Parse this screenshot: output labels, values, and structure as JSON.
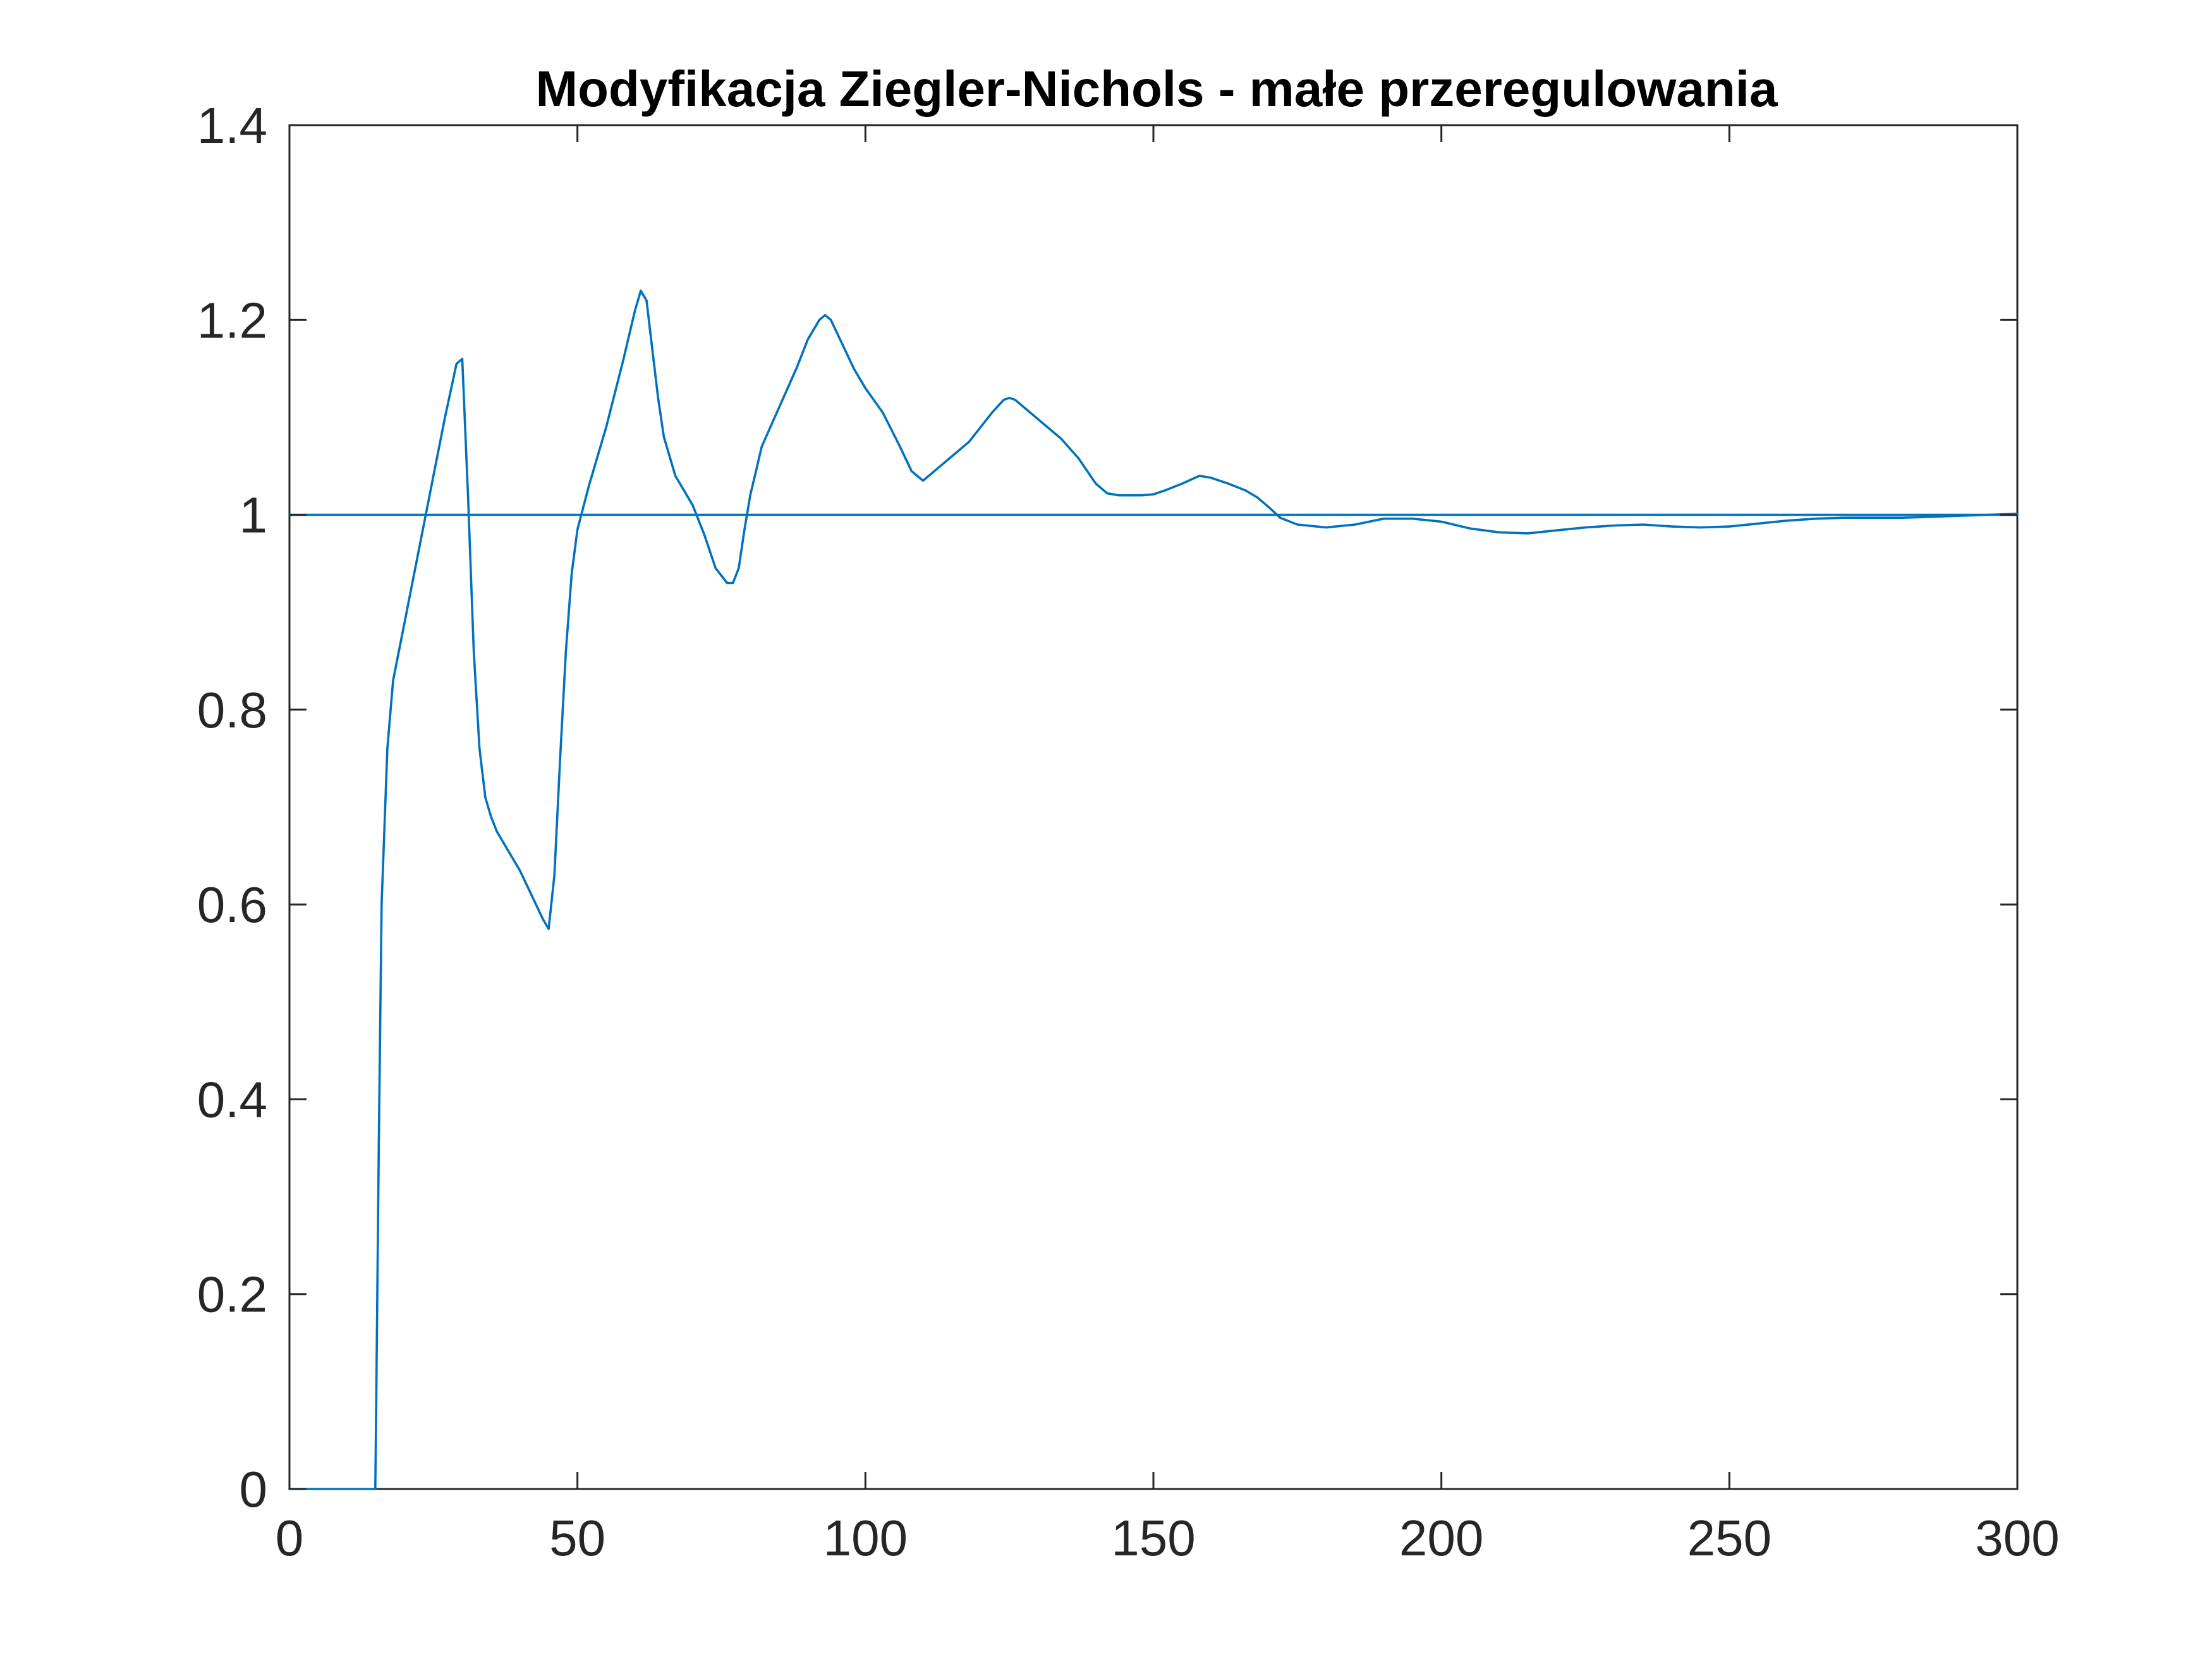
{
  "chart_data": {
    "type": "line",
    "title": "Modyfikacja Ziegler-Nichols - małe przeregulowania",
    "xlabel": "",
    "ylabel": "",
    "xlim": [
      0,
      300
    ],
    "ylim": [
      0,
      1.4
    ],
    "xticks": [
      0,
      50,
      100,
      150,
      200,
      250,
      300
    ],
    "xtick_labels": [
      "0",
      "50",
      "100",
      "150",
      "200",
      "250",
      "300"
    ],
    "yticks": [
      0,
      0.2,
      0.4,
      0.6,
      0.8,
      1,
      1.2,
      1.4
    ],
    "ytick_labels": [
      "0",
      "0.2",
      "0.4",
      "0.6",
      "0.8",
      "1",
      "1.2",
      "1.4"
    ],
    "grid": false,
    "box": true,
    "line_color": "#0072BD",
    "series": [
      {
        "x": [
          0,
          300
        ],
        "y": [
          1,
          1
        ]
      },
      {
        "x": [
          0,
          14.9,
          15,
          15.5,
          16,
          17,
          18,
          20,
          22,
          25,
          27,
          29,
          30,
          31,
          32,
          33,
          34,
          35,
          36,
          38,
          40,
          42,
          44,
          45,
          46,
          47,
          48,
          49,
          50,
          52,
          55,
          58,
          60,
          61,
          62,
          63,
          64,
          65,
          67,
          70,
          72,
          74,
          76,
          77,
          78,
          79,
          80,
          82,
          85,
          88,
          90,
          92,
          93,
          94,
          96,
          98,
          100,
          103,
          106,
          108,
          110,
          112,
          115,
          118,
          120,
          122,
          124,
          125,
          126,
          128,
          130,
          134,
          137,
          140,
          142,
          144,
          148,
          150,
          152,
          155,
          158,
          160,
          163,
          166,
          168,
          170,
          172,
          175,
          180,
          185,
          190,
          195,
          200,
          205,
          210,
          215,
          220,
          225,
          230,
          235,
          240,
          245,
          250,
          255,
          260,
          265,
          270,
          275,
          280,
          285,
          290,
          295,
          300
        ],
        "y": [
          0,
          0,
          0.05,
          0.35,
          0.6,
          0.76,
          0.83,
          0.89,
          0.95,
          1.04,
          1.1,
          1.155,
          1.16,
          1.02,
          0.86,
          0.76,
          0.71,
          0.69,
          0.675,
          0.655,
          0.635,
          0.61,
          0.585,
          0.575,
          0.63,
          0.75,
          0.86,
          0.94,
          0.985,
          1.03,
          1.09,
          1.16,
          1.21,
          1.23,
          1.22,
          1.17,
          1.12,
          1.08,
          1.04,
          1.01,
          0.98,
          0.945,
          0.93,
          0.93,
          0.945,
          0.985,
          1.02,
          1.07,
          1.11,
          1.15,
          1.18,
          1.2,
          1.205,
          1.2,
          1.175,
          1.15,
          1.13,
          1.105,
          1.07,
          1.045,
          1.035,
          1.045,
          1.06,
          1.075,
          1.09,
          1.105,
          1.118,
          1.12,
          1.118,
          1.108,
          1.098,
          1.078,
          1.058,
          1.032,
          1.022,
          1.02,
          1.02,
          1.021,
          1.025,
          1.032,
          1.04,
          1.038,
          1.032,
          1.025,
          1.018,
          1.008,
          0.997,
          0.99,
          0.987,
          0.99,
          0.996,
          0.996,
          0.993,
          0.986,
          0.982,
          0.981,
          0.984,
          0.987,
          0.989,
          0.99,
          0.988,
          0.987,
          0.988,
          0.991,
          0.994,
          0.996,
          0.997,
          0.997,
          0.997,
          0.998,
          0.999,
          1.0,
          1.001
        ]
      }
    ]
  }
}
